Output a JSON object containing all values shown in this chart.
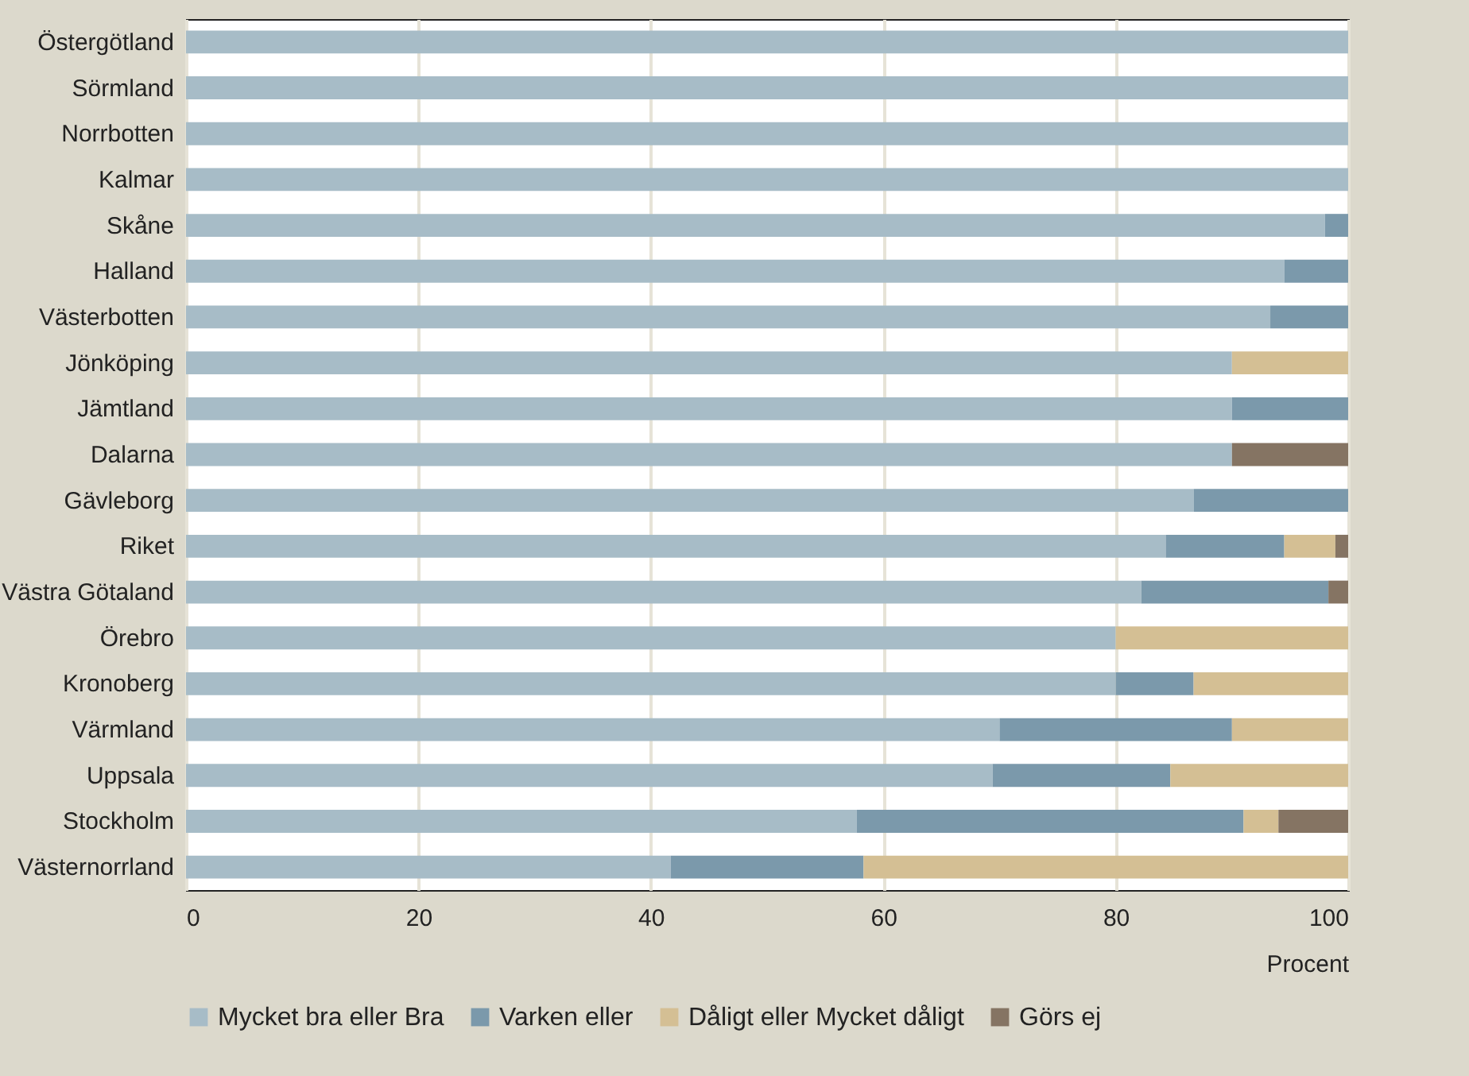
{
  "chart_data": {
    "type": "bar",
    "orientation": "horizontal",
    "stacked": true,
    "xlabel": "Procent",
    "categories": [
      "Östergötland",
      "Sörmland",
      "Norrbotten",
      "Kalmar",
      "Skåne",
      "Halland",
      "Västerbotten",
      "Jönköping",
      "Jämtland",
      "Dalarna",
      "Gävleborg",
      "Riket",
      "Västra Götaland",
      "Örebro",
      "Kronoberg",
      "Värmland",
      "Uppsala",
      "Stockholm",
      "Västernorrland"
    ],
    "series": [
      {
        "name": "Mycket bra eller Bra",
        "color": "#a7bcc7",
        "values": [
          100,
          100,
          100,
          100,
          98,
          94.5,
          93.3,
          90,
          90,
          90,
          86.7,
          84.3,
          82.2,
          80,
          80,
          70,
          69.4,
          57.7,
          41.7
        ]
      },
      {
        "name": "Varken eller",
        "color": "#7b99ab",
        "values": [
          0,
          0,
          0,
          0,
          2,
          5.5,
          6.7,
          0,
          10,
          0,
          13.3,
          10.2,
          16.1,
          0,
          6.7,
          20,
          15.3,
          33.3,
          16.6
        ]
      },
      {
        "name": "Dåligt eller Mycket dåligt",
        "color": "#d4bf94",
        "values": [
          0,
          0,
          0,
          0,
          0,
          0,
          0,
          10,
          0,
          0,
          0,
          4.4,
          0,
          20,
          13.3,
          10,
          15.3,
          3,
          41.7
        ]
      },
      {
        "name": "Görs ej",
        "color": "#857463",
        "values": [
          0,
          0,
          0,
          0,
          0,
          0,
          0,
          0,
          0,
          10,
          0,
          1.1,
          1.7,
          0,
          0,
          0,
          0,
          6,
          0
        ]
      }
    ],
    "xlim": [
      0,
      100
    ],
    "xticks": [
      0,
      20,
      40,
      60,
      80,
      100
    ],
    "grid": "x",
    "legend": "bottom"
  }
}
